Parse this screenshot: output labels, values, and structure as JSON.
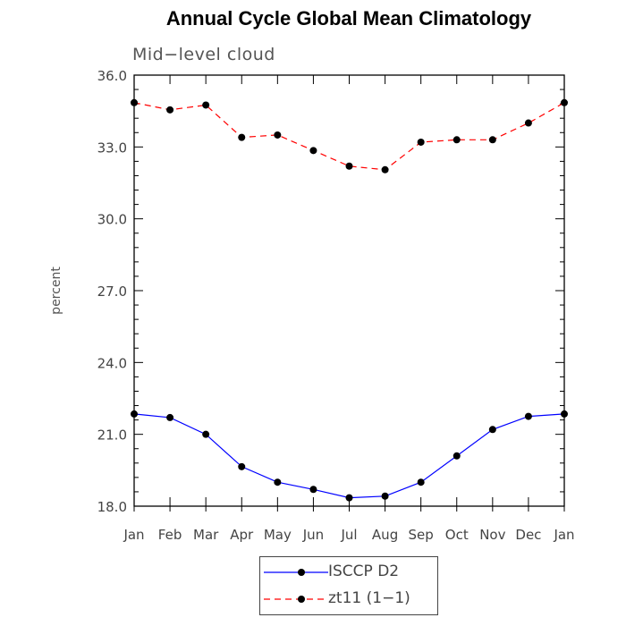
{
  "chart_data": {
    "type": "line",
    "title": "Annual Cycle Global Mean Climatology",
    "subtitle": "Mid−level cloud",
    "ylabel": "percent",
    "xlabel": "",
    "categories": [
      "Jan",
      "Feb",
      "Mar",
      "Apr",
      "May",
      "Jun",
      "Jul",
      "Aug",
      "Sep",
      "Oct",
      "Nov",
      "Dec",
      "Jan"
    ],
    "ylim": [
      18.0,
      36.0
    ],
    "yticks": [
      "18.0",
      "21.0",
      "24.0",
      "27.0",
      "30.0",
      "33.0",
      "36.0"
    ],
    "grid": false,
    "legend_position": "bottom",
    "series": [
      {
        "name": "ISCCP D2",
        "color": "#0000ff",
        "dash": "solid",
        "marker": "filled-circle",
        "values": [
          21.85,
          21.7,
          21.0,
          19.65,
          19.0,
          18.7,
          18.35,
          18.42,
          19.0,
          20.1,
          21.2,
          21.75,
          21.85
        ]
      },
      {
        "name": "zt11 (1−1)",
        "color": "#ff0000",
        "dash": "dashed",
        "marker": "filled-circle",
        "values": [
          34.85,
          34.55,
          34.75,
          33.4,
          33.5,
          32.85,
          32.2,
          32.05,
          33.2,
          33.3,
          33.3,
          34.0,
          34.85
        ]
      }
    ]
  }
}
